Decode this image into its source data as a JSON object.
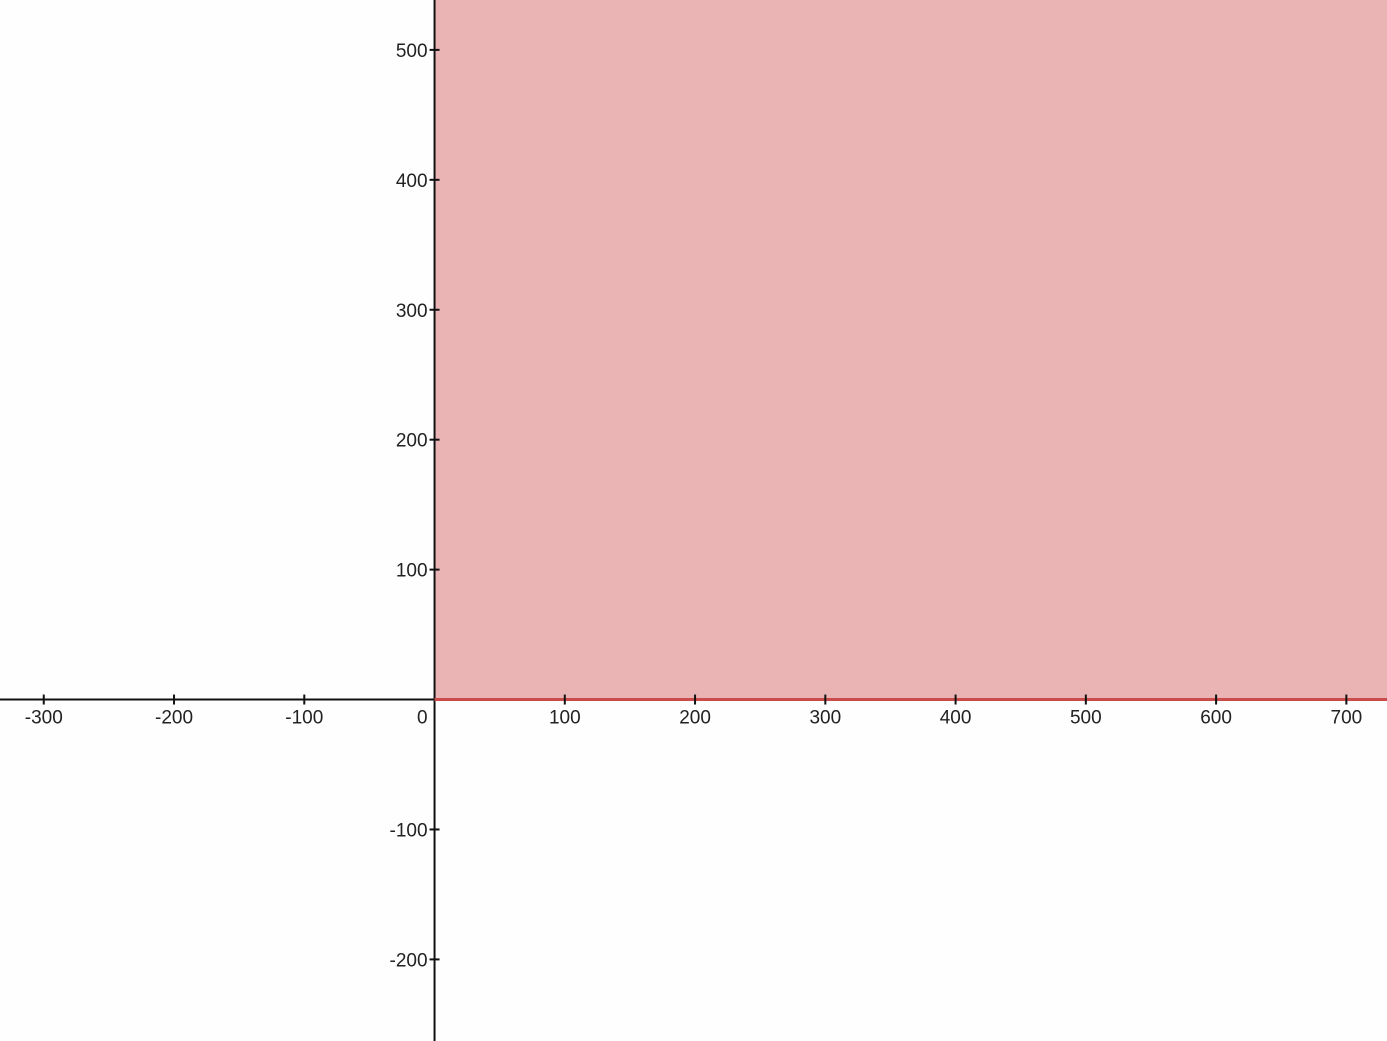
{
  "chart_data": {
    "type": "area",
    "title": "",
    "xlabel": "",
    "ylabel": "",
    "xlim": [
      -333.6,
      731.2
    ],
    "ylim": [
      -262.8,
      538.4
    ],
    "grid": false,
    "legend": "none",
    "x_ticks": [
      -300,
      -200,
      -100,
      100,
      200,
      300,
      400,
      500,
      600,
      700
    ],
    "y_ticks": [
      -200,
      -100,
      100,
      200,
      300,
      400,
      500
    ],
    "origin_label": "0",
    "region": {
      "x_min": 0,
      "y_min": 0,
      "boundary": "y = 0 (solid, x ≥ 0)"
    },
    "colors": {
      "fill": "#eab4b5",
      "boundary": "#cc4c4c",
      "axis": "#111111",
      "background": "#fefefe"
    }
  }
}
